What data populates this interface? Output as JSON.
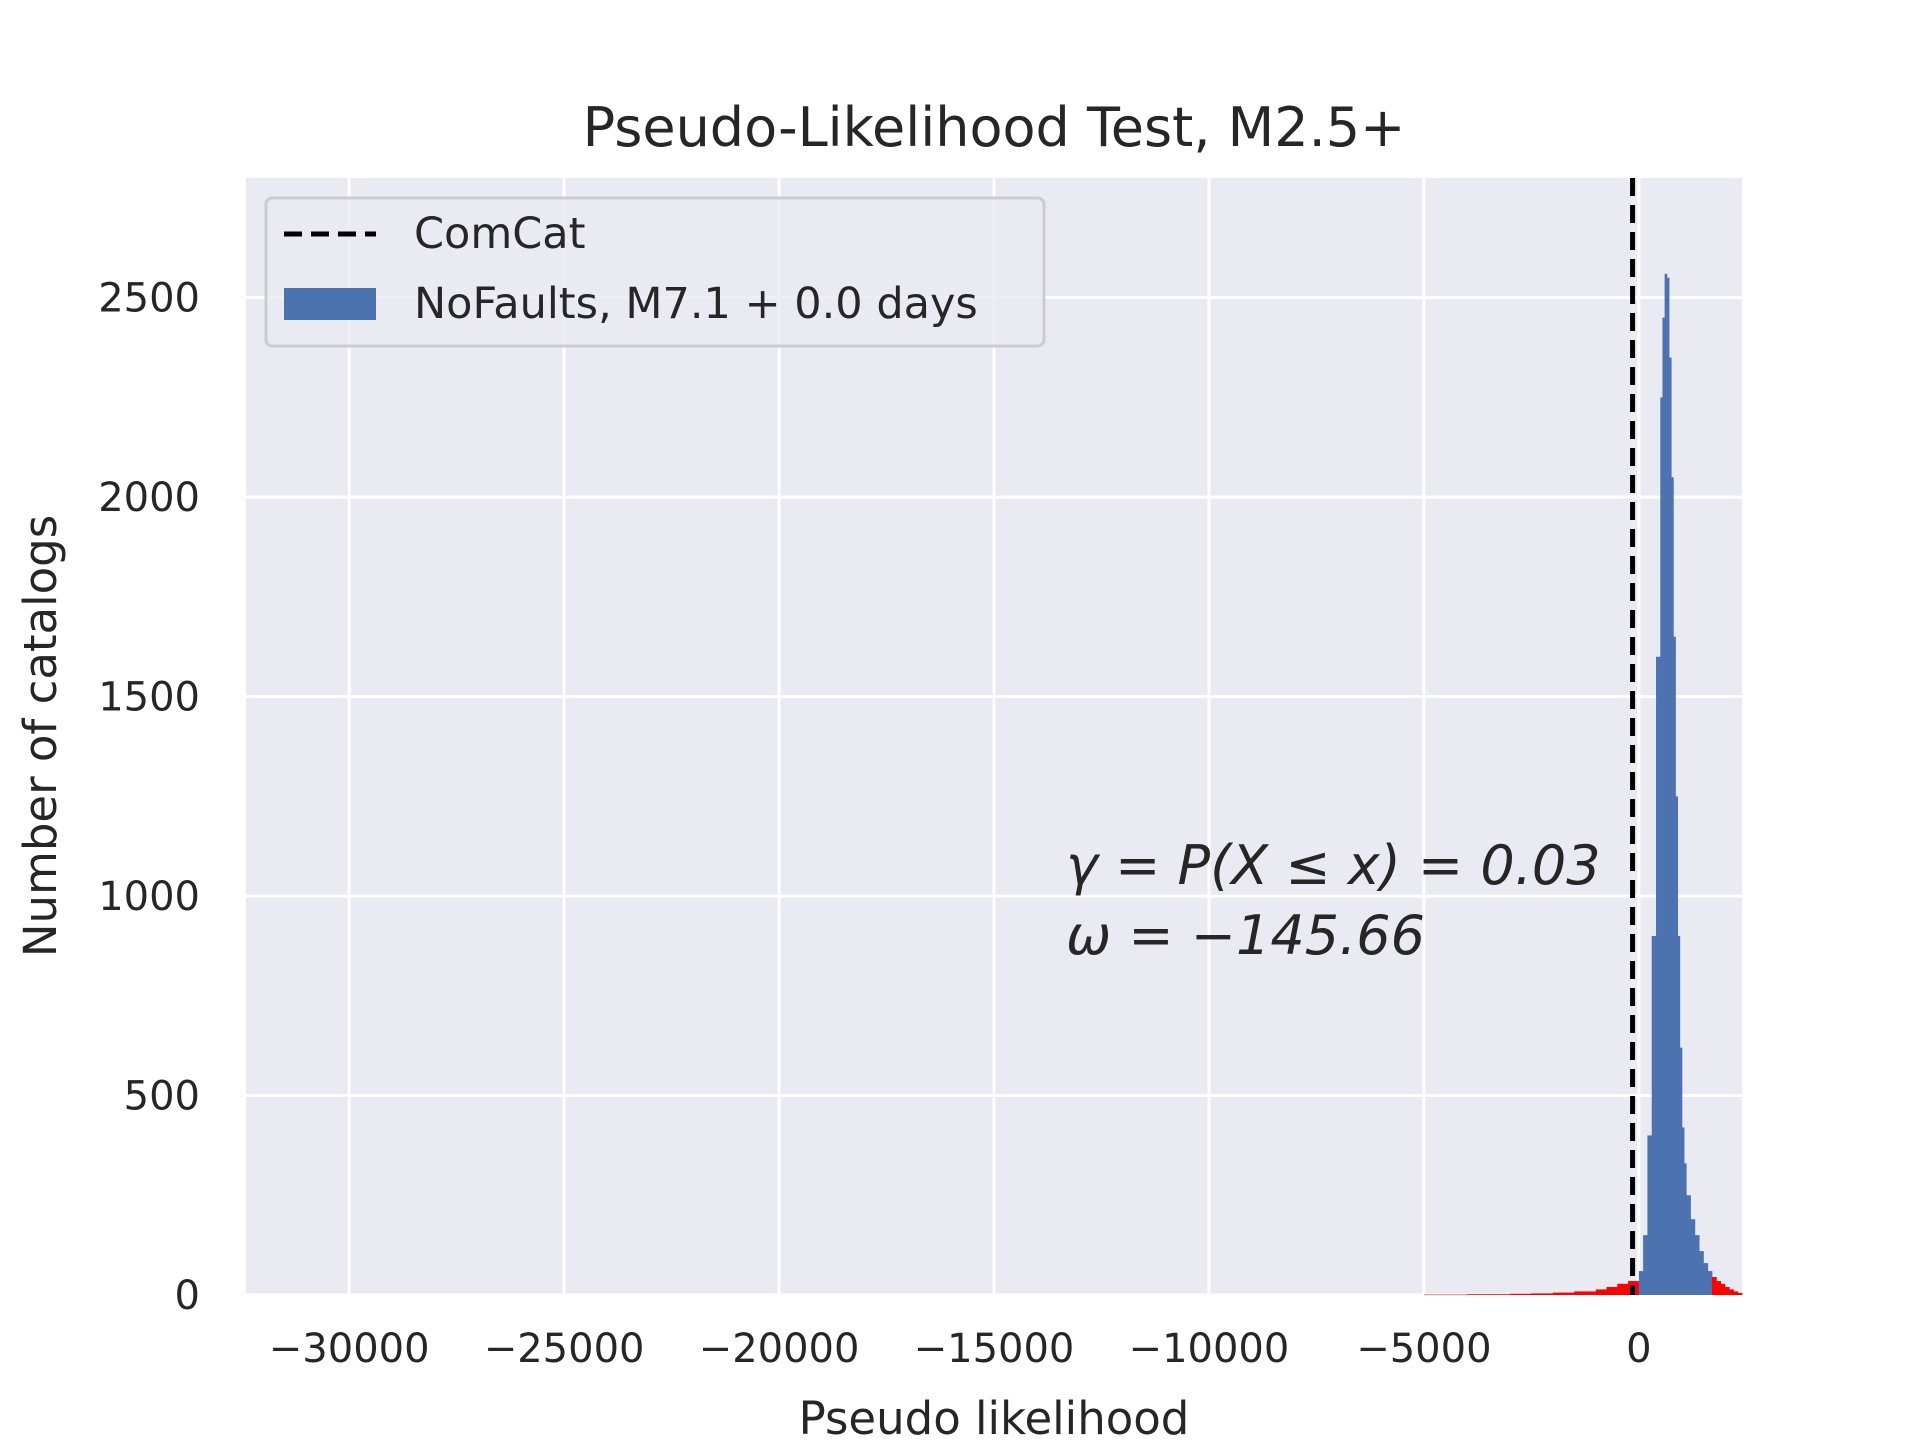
{
  "chart_data": {
    "type": "bar",
    "title": "Pseudo-Likelihood Test, M2.5+",
    "xlabel": "Pseudo likelihood",
    "ylabel": "Number of catalogs",
    "xlim": [
      -32400,
      2400
    ],
    "ylim": [
      0,
      2800
    ],
    "xticks": [
      -30000,
      -25000,
      -20000,
      -15000,
      -10000,
      -5000,
      0
    ],
    "xtick_labels": [
      "−30000",
      "−25000",
      "−20000",
      "−15000",
      "−10000",
      "−5000",
      "0"
    ],
    "yticks": [
      0,
      500,
      1000,
      1500,
      2000,
      2500
    ],
    "ytick_labels": [
      "0",
      "500",
      "1000",
      "1500",
      "2000",
      "2500"
    ],
    "grid": true,
    "legend_position": "top-left",
    "legend": [
      {
        "label": "ComCat",
        "style": "dashed-line",
        "color": "#000000"
      },
      {
        "label": "NoFaults, M7.1 + 0.0 days",
        "style": "patch",
        "color": "#4c72b0"
      }
    ],
    "observed_value": -145.66,
    "annotation": {
      "line1": "γ = P(X ≤ x) = 0.03",
      "line2": "ω = −145.66"
    },
    "histogram": {
      "x": [
        -5000,
        -4500,
        -4000,
        -3500,
        -3000,
        -2500,
        -2000,
        -1500,
        -1000,
        -750,
        -500,
        -250,
        0,
        100,
        200,
        300,
        400,
        500,
        550,
        600,
        650,
        700,
        750,
        800,
        850,
        900,
        950,
        1000,
        1050,
        1100,
        1200,
        1300,
        1400,
        1500,
        1600,
        1700,
        1800,
        1900,
        2000,
        2100,
        2200,
        2300
      ],
      "values": [
        1,
        1,
        2,
        2,
        3,
        4,
        6,
        9,
        14,
        20,
        28,
        35,
        60,
        150,
        400,
        900,
        1600,
        2250,
        2450,
        2560,
        2550,
        2350,
        2050,
        1650,
        1250,
        900,
        620,
        420,
        330,
        250,
        190,
        150,
        110,
        80,
        60,
        45,
        35,
        28,
        20,
        14,
        9,
        5
      ],
      "colors": {
        "main": "#4c72b0",
        "tail": "#ff0000"
      },
      "tail_ranges": [
        [
          -5000,
          -250
        ],
        [
          1700,
          2400
        ]
      ]
    },
    "colors": {
      "background": "#eaeaf2",
      "grid": "#ffffff",
      "bar": "#4c72b0",
      "tail": "#ff0000",
      "observed_line": "#000000"
    }
  }
}
